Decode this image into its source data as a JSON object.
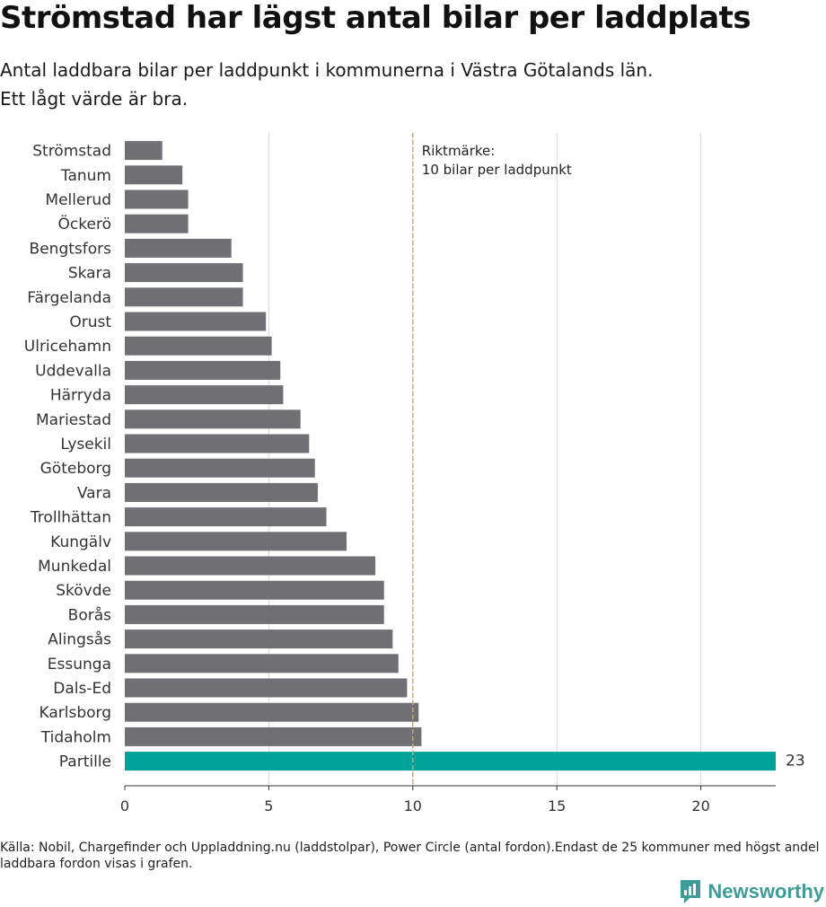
{
  "title": "Strömstad har lägst antal bilar per laddplats",
  "subtitle_lines": [
    "Antal laddbara bilar per laddpunkt i kommunerna i Västra Götalands län.",
    "Ett lågt värde är bra."
  ],
  "source": "Källa: Nobil, Chargefinder och Uppladdning.nu (laddstolpar), Power Circle (antal fordon).Endast de 25 kommuner med högst andel laddbara fordon visas i grafen.",
  "logo_text": "Newsworthy",
  "colors": {
    "bar": "#706f74",
    "highlight": "#00a39a",
    "reference_line": "#d4a55a",
    "grid": "#d9d9d9",
    "logo": "#3e9c98"
  },
  "chart_data": {
    "type": "bar",
    "orientation": "horizontal",
    "categories": [
      "Strömstad",
      "Tanum",
      "Mellerud",
      "Öckerö",
      "Bengtsfors",
      "Skara",
      "Färgelanda",
      "Orust",
      "Ulricehamn",
      "Uddevalla",
      "Härryda",
      "Mariestad",
      "Lysekil",
      "Göteborg",
      "Vara",
      "Trollhättan",
      "Kungälv",
      "Munkedal",
      "Skövde",
      "Borås",
      "Alingsås",
      "Essunga",
      "Dals-Ed",
      "Karlsborg",
      "Tidaholm",
      "Partille"
    ],
    "values": [
      1.3,
      2.0,
      2.2,
      2.2,
      3.7,
      4.1,
      4.1,
      4.9,
      5.1,
      5.4,
      5.5,
      6.1,
      6.4,
      6.6,
      6.7,
      7.0,
      7.7,
      8.7,
      9.0,
      9.0,
      9.3,
      9.5,
      9.8,
      10.2,
      10.3,
      23
    ],
    "highlight": "Partille",
    "value_labels": {
      "Partille": "23"
    },
    "xlim": [
      0,
      22.6
    ],
    "xticks": [
      0,
      5,
      10,
      15,
      20
    ],
    "grid": true,
    "reference": {
      "value": 10,
      "label_lines": [
        "Riktmärke:",
        "10 bilar per laddpunkt"
      ]
    }
  }
}
